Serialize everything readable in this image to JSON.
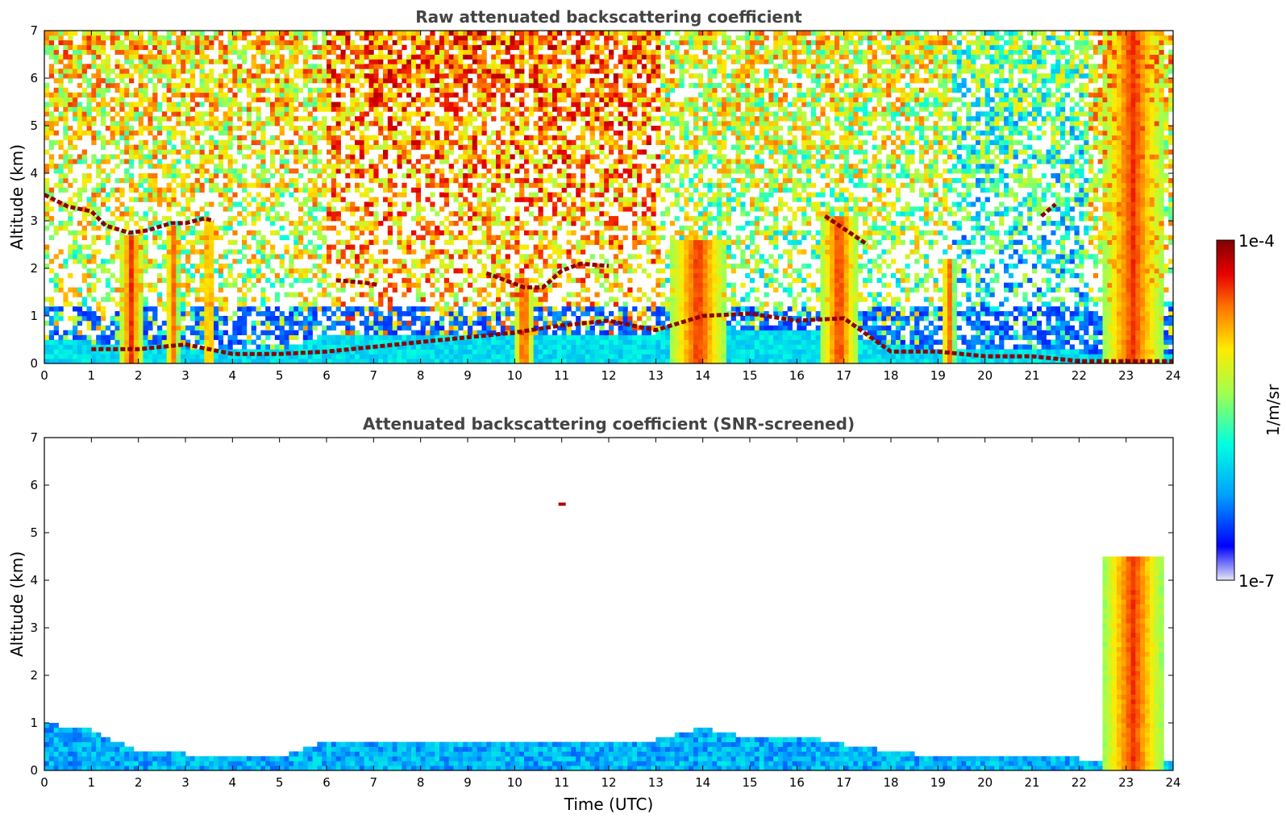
{
  "chart_data": [
    {
      "type": "heatmap",
      "title": "Raw attenuated backscattering coefficient",
      "xlabel": "",
      "ylabel": "Altitude (km)",
      "xlim": [
        0,
        24
      ],
      "ylim": [
        0,
        7
      ],
      "x_ticks": [
        0,
        1,
        2,
        3,
        4,
        5,
        6,
        7,
        8,
        9,
        10,
        11,
        12,
        13,
        14,
        15,
        16,
        17,
        18,
        19,
        20,
        21,
        22,
        23,
        24
      ],
      "y_ticks": [
        0,
        1,
        2,
        3,
        4,
        5,
        6,
        7
      ],
      "grid": false,
      "features": [
        {
          "kind": "boundary_layer",
          "points": [
            [
              0,
              0.55
            ],
            [
              1,
              0.45
            ],
            [
              2,
              0.4
            ],
            [
              3,
              0.35
            ],
            [
              4,
              0.3
            ],
            [
              5,
              0.3
            ],
            [
              6,
              0.6
            ],
            [
              8,
              0.55
            ],
            [
              10,
              0.6
            ],
            [
              12,
              0.6
            ],
            [
              13,
              0.65
            ],
            [
              14,
              0.9
            ],
            [
              15,
              0.7
            ],
            [
              16,
              0.75
            ],
            [
              17,
              0.55
            ],
            [
              18,
              0.4
            ],
            [
              19,
              0.3
            ],
            [
              20,
              0.25
            ],
            [
              21,
              0.3
            ],
            [
              22,
              0.25
            ],
            [
              23,
              0.2
            ],
            [
              24,
              0.2
            ]
          ]
        },
        {
          "kind": "cloud_layer",
          "points": [
            [
              0,
              3.55
            ],
            [
              0.5,
              3.3
            ],
            [
              1,
              3.2
            ],
            [
              1.3,
              2.9
            ],
            [
              1.8,
              2.75
            ],
            [
              2.2,
              2.8
            ],
            [
              2.7,
              2.95
            ],
            [
              3.0,
              2.95
            ],
            [
              3.4,
              3.05
            ],
            [
              3.6,
              3.0
            ]
          ]
        },
        {
          "kind": "cloud_layer",
          "points": [
            [
              6.2,
              1.75
            ],
            [
              6.8,
              1.7
            ],
            [
              7.1,
              1.65
            ]
          ]
        },
        {
          "kind": "cloud_layer",
          "points": [
            [
              9.4,
              1.9
            ],
            [
              9.8,
              1.75
            ],
            [
              10.2,
              1.6
            ],
            [
              10.6,
              1.6
            ],
            [
              11.0,
              1.95
            ],
            [
              11.4,
              2.1
            ],
            [
              12.0,
              2.05
            ]
          ]
        },
        {
          "kind": "cloud_layer",
          "points": [
            [
              16.6,
              3.1
            ],
            [
              16.9,
              2.9
            ],
            [
              17.2,
              2.7
            ],
            [
              17.5,
              2.5
            ]
          ]
        },
        {
          "kind": "cloud_layer",
          "points": [
            [
              21.2,
              3.1
            ],
            [
              21.5,
              3.35
            ]
          ]
        },
        {
          "kind": "cloud_layer",
          "points": [
            [
              1.0,
              0.3
            ],
            [
              2.0,
              0.3
            ],
            [
              3.0,
              0.4
            ],
            [
              4.0,
              0.2
            ],
            [
              5.0,
              0.2
            ],
            [
              6.0,
              0.25
            ],
            [
              7.0,
              0.35
            ],
            [
              8.0,
              0.45
            ],
            [
              9.0,
              0.55
            ],
            [
              10.0,
              0.65
            ],
            [
              11.0,
              0.8
            ],
            [
              12.0,
              0.9
            ],
            [
              13.0,
              0.7
            ],
            [
              14.0,
              1.0
            ],
            [
              15.0,
              1.05
            ],
            [
              16.0,
              0.9
            ],
            [
              17.0,
              0.95
            ],
            [
              18.0,
              0.25
            ],
            [
              19.0,
              0.25
            ],
            [
              20.0,
              0.15
            ],
            [
              21.0,
              0.15
            ],
            [
              22.0,
              0.05
            ],
            [
              23.0,
              0.05
            ],
            [
              24.0,
              0.05
            ]
          ]
        },
        {
          "kind": "plume",
          "x": [
            1.6,
            2.1
          ],
          "top": 2.7
        },
        {
          "kind": "plume",
          "x": [
            2.6,
            2.85
          ],
          "top": 2.9
        },
        {
          "kind": "plume",
          "x": [
            3.4,
            3.6
          ],
          "top": 3.0
        },
        {
          "kind": "plume",
          "x": [
            10.0,
            10.4
          ],
          "top": 1.6
        },
        {
          "kind": "plume",
          "x": [
            13.3,
            14.5
          ],
          "top": 2.6
        },
        {
          "kind": "plume",
          "x": [
            16.5,
            17.3
          ],
          "top": 3.1
        },
        {
          "kind": "plume",
          "x": [
            19.1,
            19.35
          ],
          "top": 2.2
        },
        {
          "kind": "plume",
          "x": [
            22.5,
            23.8
          ],
          "top": 7.0
        }
      ]
    },
    {
      "type": "heatmap",
      "title": "Attenuated backscattering coefficient (SNR-screened)",
      "xlabel": "Time (UTC)",
      "ylabel": "Altitude (km)",
      "xlim": [
        0,
        24
      ],
      "ylim": [
        0,
        7
      ],
      "x_ticks": [
        0,
        1,
        2,
        3,
        4,
        5,
        6,
        7,
        8,
        9,
        10,
        11,
        12,
        13,
        14,
        15,
        16,
        17,
        18,
        19,
        20,
        21,
        22,
        23,
        24
      ],
      "y_ticks": [
        0,
        1,
        2,
        3,
        4,
        5,
        6,
        7
      ],
      "grid": false,
      "features": [
        {
          "kind": "boundary_layer",
          "points": [
            [
              0,
              1.0
            ],
            [
              1,
              0.85
            ],
            [
              2,
              0.4
            ],
            [
              3,
              0.35
            ],
            [
              4,
              0.3
            ],
            [
              5,
              0.3
            ],
            [
              6,
              0.6
            ],
            [
              8,
              0.55
            ],
            [
              10,
              0.6
            ],
            [
              12,
              0.6
            ],
            [
              13,
              0.65
            ],
            [
              14,
              0.9
            ],
            [
              15,
              0.7
            ],
            [
              16,
              0.75
            ],
            [
              17,
              0.55
            ],
            [
              18,
              0.4
            ],
            [
              19,
              0.3
            ],
            [
              20,
              0.25
            ],
            [
              21,
              0.3
            ],
            [
              22,
              0.25
            ],
            [
              23,
              0.2
            ],
            [
              24,
              0.2
            ]
          ]
        },
        {
          "kind": "isolated_cloud",
          "x": 11.0,
          "y": 5.6
        },
        {
          "kind": "plume",
          "x": [
            22.5,
            23.8
          ],
          "top": 4.5
        }
      ]
    }
  ],
  "colorbar": {
    "label": "1/m/sr",
    "max_label": "1e-4",
    "min_label": "1e-7",
    "scale": "log",
    "range": [
      1e-07,
      0.0001
    ],
    "colormap": [
      "#e6e6f5",
      "#0000ff",
      "#00a0ff",
      "#00ffe0",
      "#a0ff50",
      "#ffea00",
      "#ff7800",
      "#e80000",
      "#800000"
    ]
  }
}
